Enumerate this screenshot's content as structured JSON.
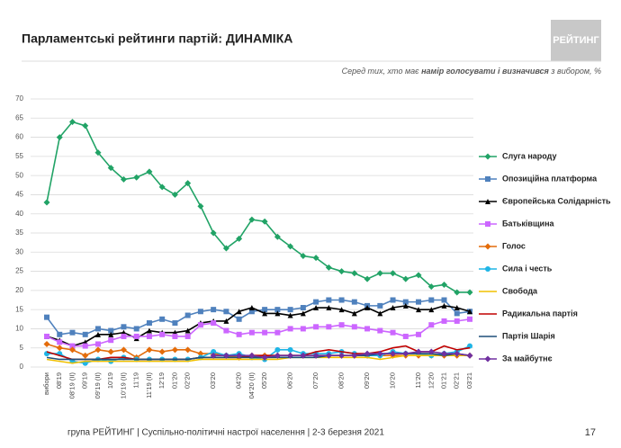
{
  "chart_data": {
    "type": "line",
    "title": "Парламентські рейтинги партій: ДИНАМІКА",
    "logo": "РЕЙТИНГ",
    "subtitle_start": "Серед тих, хто має ",
    "subtitle_bold": "намір голосувати і визначився",
    "subtitle_end": " з вибором, %",
    "footer": "група РЕЙТИНГ | Суспільно-політичні настрої населення  | 2-3 березня 2021",
    "page_number": "17",
    "categories": [
      "вибори",
      "08'19",
      "08'19 (ІІ)",
      "09'19",
      "09'19 (ІІ)",
      "10'19",
      "10'19 (ІІ)",
      "11'19",
      "11'19 (ІІ)",
      "12'19",
      "01'20",
      "02'20",
      null,
      "03'20",
      null,
      "04'20",
      "04'20 (ІІ)",
      "05'20",
      null,
      "06'20",
      null,
      "07'20",
      null,
      "08'20",
      null,
      "09'20",
      null,
      "10'20",
      null,
      "11'20",
      "12'20",
      "01'21",
      "02'21",
      "03'21"
    ],
    "ylim": [
      0,
      70
    ],
    "yticks": [
      0,
      5,
      10,
      15,
      20,
      25,
      30,
      35,
      40,
      45,
      50,
      55,
      60,
      65,
      70
    ],
    "grid": true,
    "series": [
      {
        "name": "Слуга народу",
        "color": "#21a366",
        "marker": "diamond",
        "values": [
          43,
          60,
          64,
          63,
          56,
          52,
          49,
          49.5,
          51,
          47,
          45,
          48,
          42,
          35,
          31,
          33.5,
          38.5,
          38,
          34,
          31.5,
          29,
          28.5,
          26,
          25,
          24.5,
          23,
          24.5,
          24.5,
          23,
          24,
          21,
          21.5,
          19.5,
          19.5
        ]
      },
      {
        "name": "Опозиційна платформа",
        "color": "#4f81bd",
        "marker": "square",
        "values": [
          13,
          8.5,
          9,
          8.5,
          10,
          9.5,
          10.5,
          10,
          11.5,
          12.5,
          11.5,
          13.5,
          14.5,
          15,
          14.5,
          12.5,
          14.5,
          15,
          15,
          15,
          15.5,
          17,
          17.5,
          17.5,
          17,
          16,
          16,
          17.5,
          17,
          17,
          17.5,
          17.5,
          14,
          14.5
        ]
      },
      {
        "name": "Європейська Солідарність",
        "color": "#000000",
        "marker": "triangle",
        "values": [
          8,
          7,
          5.5,
          6.5,
          8.5,
          8.5,
          9,
          7.5,
          9.5,
          9,
          9,
          9.5,
          11.5,
          12,
          12,
          14.5,
          15.5,
          14,
          14,
          13.5,
          14,
          15.5,
          15.5,
          15,
          14,
          15.5,
          14,
          15.5,
          16,
          15,
          15,
          16,
          15.5,
          14.5
        ]
      },
      {
        "name": "Батьківщина",
        "color": "#cc66ff",
        "marker": "square",
        "values": [
          8,
          6.5,
          5.5,
          5.5,
          6,
          7,
          8,
          8,
          8,
          8.5,
          8,
          8,
          11,
          11.5,
          9.5,
          8.5,
          9,
          9,
          9,
          10,
          10,
          10.5,
          10.5,
          11,
          10.5,
          10,
          9.5,
          9,
          8,
          8.5,
          11,
          12,
          12,
          12.5
        ]
      },
      {
        "name": "Голос",
        "color": "#e46c0a",
        "marker": "diamond",
        "values": [
          6,
          5,
          4.5,
          3,
          4.5,
          4,
          4.5,
          2.5,
          4.5,
          4,
          4.5,
          4.5,
          3.5,
          3.5,
          3,
          2.5,
          3,
          3,
          3,
          3,
          3,
          3,
          3,
          3,
          3,
          3,
          3,
          3,
          3,
          3,
          3,
          3,
          3,
          3
        ]
      },
      {
        "name": "Сила і честь",
        "color": "#1fb5e6",
        "marker": "circle",
        "values": [
          3.5,
          3.5,
          1.5,
          1,
          2,
          1.5,
          2.5,
          2,
          2,
          2,
          2,
          2,
          2.5,
          4,
          3,
          3.5,
          2.5,
          2,
          4.5,
          4.5,
          3.5,
          3.5,
          3.5,
          4,
          3.5,
          3,
          3,
          4,
          3.5,
          3.5,
          3,
          3.5,
          4,
          5.5
        ]
      },
      {
        "name": "Свобода",
        "color": "#f0c000",
        "marker": "none",
        "values": [
          2,
          1.5,
          1,
          1.5,
          1.5,
          1.5,
          1.5,
          1.5,
          1.5,
          1.5,
          1.5,
          1.5,
          2,
          2,
          2,
          2,
          2,
          2,
          2,
          2.5,
          2.5,
          2.5,
          2.5,
          2.5,
          2.5,
          2.5,
          2,
          2.5,
          3,
          3,
          3,
          3,
          3,
          3
        ]
      },
      {
        "name": "Радикальна партія",
        "color": "#c00000",
        "marker": "none",
        "values": [
          4,
          3,
          2,
          2,
          2,
          2.5,
          2.5,
          2,
          2,
          2,
          2,
          2,
          2.5,
          2.5,
          2.5,
          2.5,
          3,
          3,
          3,
          3,
          3,
          4,
          4.5,
          4,
          3.5,
          3.5,
          4,
          5,
          5.5,
          4,
          4,
          5.5,
          4.5,
          5
        ]
      },
      {
        "name": "Партія Шарія",
        "color": "#1f4e79",
        "marker": "none",
        "values": [
          2.5,
          2,
          2,
          2,
          2,
          2,
          2,
          2,
          2,
          2,
          2,
          2,
          2.5,
          2.5,
          2.5,
          2.5,
          2.5,
          2.5,
          2.5,
          2.5,
          2.5,
          2.5,
          3,
          3,
          3,
          3,
          3.5,
          3.5,
          3.5,
          3.5,
          3.5,
          3,
          3.5,
          3
        ]
      },
      {
        "name": "За майбутнє",
        "color": "#7030a0",
        "marker": "diamond",
        "values": [
          null,
          null,
          null,
          null,
          null,
          null,
          null,
          null,
          null,
          null,
          null,
          null,
          null,
          3,
          3,
          3,
          3,
          2.5,
          3,
          3,
          3,
          3,
          3,
          3,
          3,
          3.5,
          3.5,
          3.5,
          3.5,
          4,
          4,
          3.5,
          3.5,
          3
        ]
      }
    ]
  }
}
